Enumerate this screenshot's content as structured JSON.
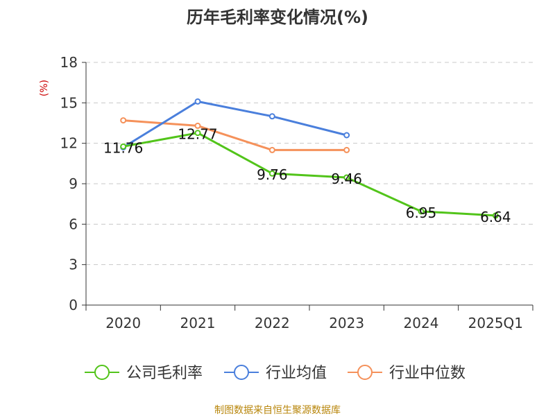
{
  "chart_data": {
    "type": "line",
    "title": "历年毛利率变化情况(%)",
    "ylabel": "(%)",
    "xlabel": "",
    "categories": [
      "2020",
      "2021",
      "2022",
      "2023",
      "2024",
      "2025Q1"
    ],
    "ylim": [
      0,
      18
    ],
    "yticks": [
      0,
      3,
      6,
      9,
      12,
      15,
      18
    ],
    "grid": true,
    "legend_position": "bottom",
    "series": [
      {
        "name": "公司毛利率",
        "color": "#52c41a",
        "values": [
          11.76,
          12.77,
          9.76,
          9.46,
          6.95,
          6.64
        ],
        "labels": [
          "11.76",
          "12.77",
          "9.76",
          "9.46",
          "6.95",
          "6.64"
        ]
      },
      {
        "name": "行业均值",
        "color": "#4a7fdc",
        "values": [
          11.7,
          15.1,
          14.0,
          12.6,
          null,
          null
        ]
      },
      {
        "name": "行业中位数",
        "color": "#f5915a",
        "values": [
          13.7,
          13.3,
          11.5,
          11.5,
          null,
          null
        ]
      }
    ],
    "source": "制图数据来自恒生聚源数据库"
  }
}
